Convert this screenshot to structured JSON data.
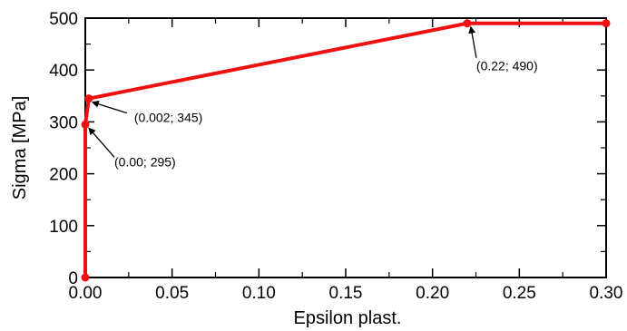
{
  "chart_data": {
    "type": "line",
    "title": "",
    "xlabel": "Epsilon plast.",
    "ylabel": "Sigma [MPa]",
    "xlim": [
      0,
      0.3
    ],
    "ylim": [
      0,
      500
    ],
    "x_ticks": [
      "0.00",
      "0.05",
      "0.10",
      "0.15",
      "0.20",
      "0.25",
      "0.30"
    ],
    "y_ticks": [
      "0",
      "100",
      "200",
      "300",
      "400",
      "500"
    ],
    "grid": false,
    "legend": "none",
    "series": [
      {
        "color": "#ee1111",
        "x": [
          0.0,
          0.0,
          0.002,
          0.22,
          0.3
        ],
        "y": [
          0,
          295,
          345,
          490,
          490
        ]
      }
    ],
    "annotations": [
      {
        "text": "(0.00; 295)",
        "x": 0.0,
        "y": 295
      },
      {
        "text": "(0.002; 345)",
        "x": 0.002,
        "y": 345
      },
      {
        "text": "(0.22; 490)",
        "x": 0.22,
        "y": 490
      }
    ]
  }
}
